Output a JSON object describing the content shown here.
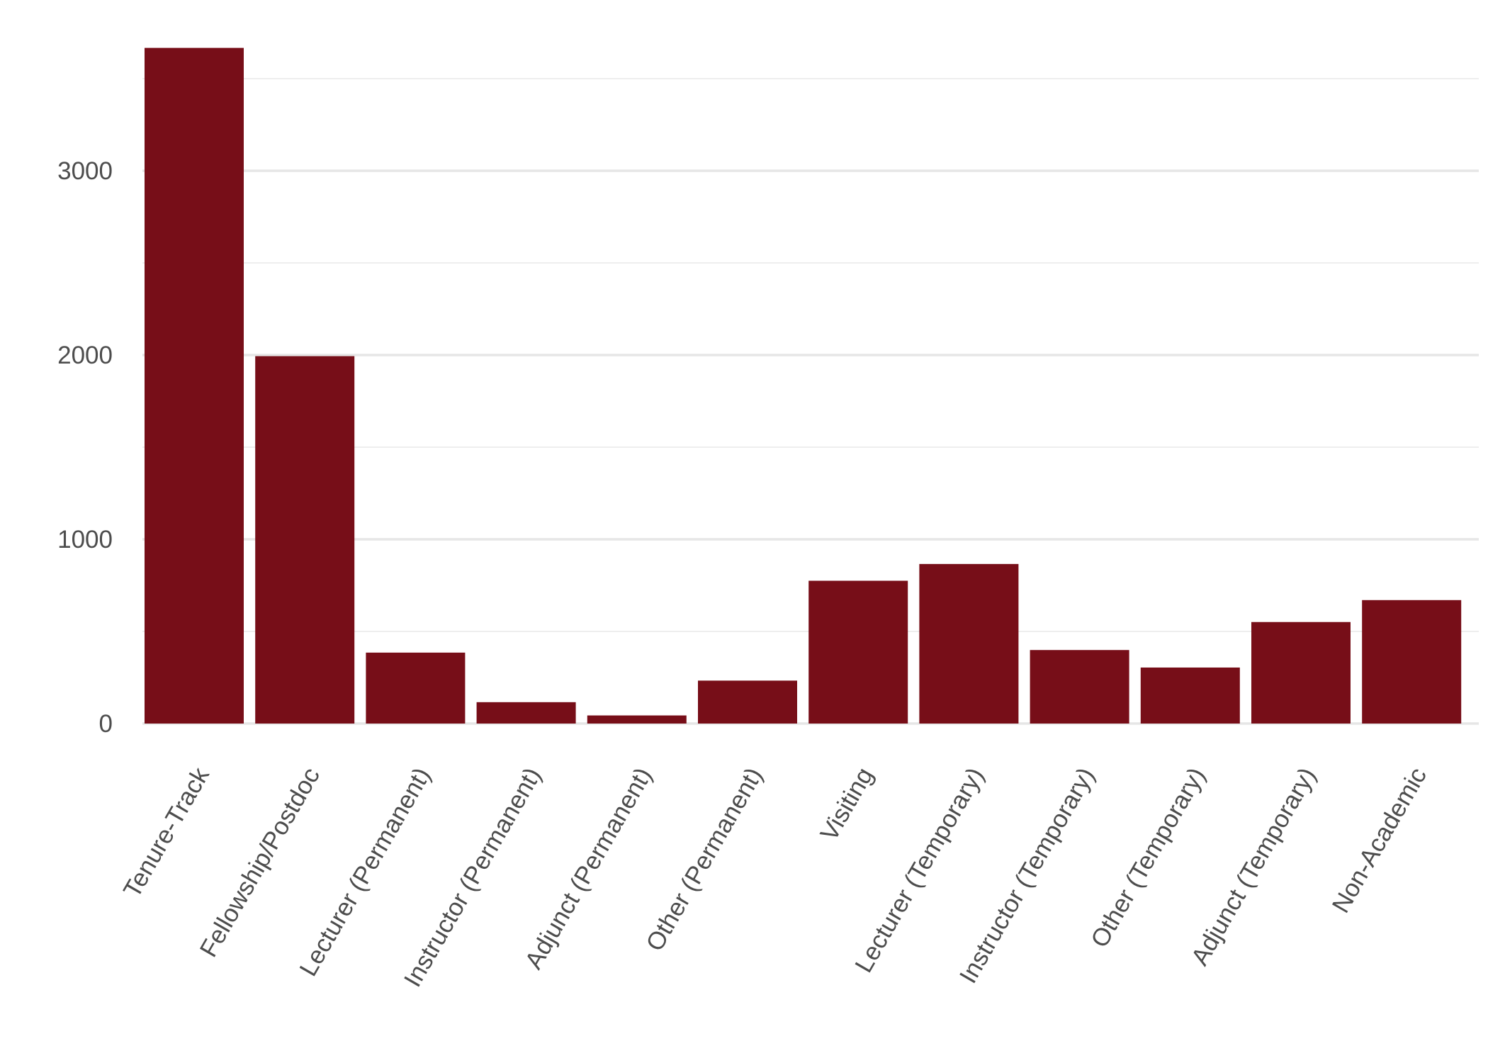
{
  "chart_data": {
    "type": "bar",
    "title": "",
    "xlabel": "",
    "ylabel": "",
    "categories": [
      "Tenure-Track",
      "Fellowship/Postdoc",
      "Lecturer (Permanent)",
      "Instructor (Permanent)",
      "Adjunct (Permanent)",
      "Other (Permanent)",
      "Visiting",
      "Lecturer (Temporary)",
      "Instructor (Temporary)",
      "Other (Temporary)",
      "Adjunct (Temporary)",
      "Non-Academic"
    ],
    "values": [
      3667,
      1994,
      385,
      116,
      44,
      233,
      775,
      866,
      399,
      304,
      551,
      670
    ],
    "ylim": [
      0,
      3667
    ],
    "yticks": [
      0,
      1000,
      2000,
      3000
    ],
    "yticks_minor": [
      500,
      1500,
      2500,
      3500
    ],
    "grid": true,
    "legend": "none",
    "colors": {
      "bar": "#770E18",
      "grid": "#e6e6e6",
      "text": "#4d4d4d",
      "background": "#ffffff"
    }
  }
}
